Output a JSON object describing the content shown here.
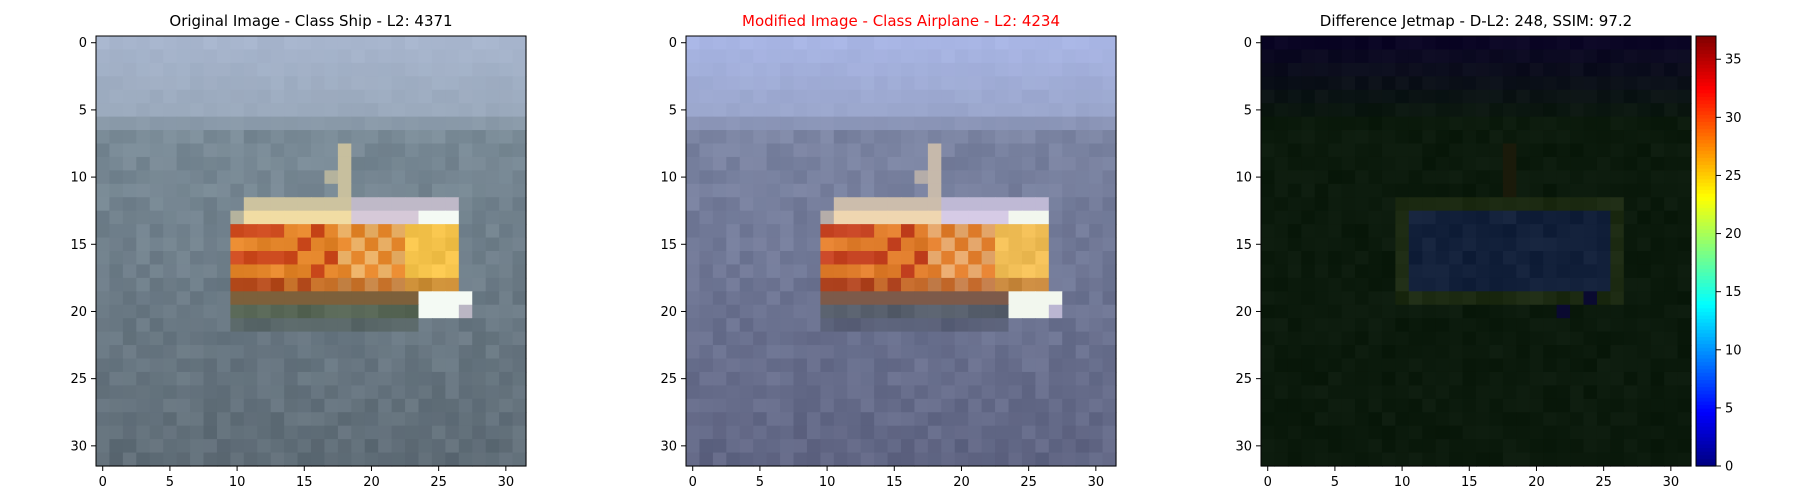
{
  "figure": {
    "colors": {
      "background": "#ffffff",
      "axis": "#000000",
      "title_default": "#000000",
      "title_modified": "#ff0000"
    }
  },
  "chart_data": [
    {
      "type": "heatmap",
      "title": "Original Image - Class Ship - L2: 4371",
      "title_color": "#000000",
      "image_shape": [
        32,
        32
      ],
      "xlim": [
        -0.5,
        31.5
      ],
      "ylim": [
        31.5,
        -0.5
      ],
      "xticks": [
        0,
        5,
        10,
        15,
        20,
        25,
        30
      ],
      "yticks": [
        0,
        5,
        10,
        15,
        20,
        25,
        30
      ],
      "palette": {
        "sky_top": "#a7b5cd",
        "sky_bottom": "#9aa9bc",
        "sea": "#798a96",
        "sea_dark": "#5c6973",
        "hull_cream": "#f1dca3",
        "hull_orange": "#e3852a",
        "hull_red": "#cc4a1e",
        "hull_yellow": "#f4c24a",
        "cabin_lavender": "#d6c9d8",
        "white": "#f4faf4",
        "hull_dark": "#9a4f1e",
        "shadow": "#46524c",
        "green_tint": "#5f7058"
      }
    },
    {
      "type": "heatmap",
      "title": "Modified Image - Class Airplane - L2: 4234",
      "title_color": "#ff0000",
      "image_shape": [
        32,
        32
      ],
      "xlim": [
        -0.5,
        31.5
      ],
      "ylim": [
        31.5,
        -0.5
      ],
      "xticks": [
        0,
        5,
        10,
        15,
        20,
        25,
        30
      ],
      "yticks": [
        0,
        5,
        10,
        15,
        20,
        25,
        30
      ],
      "palette": {
        "sky_top": "#a8b5e4",
        "sky_bottom": "#9aa6cc",
        "sea": "#7b84a2",
        "sea_dark": "#5d6280",
        "hull_cream": "#efd6b0",
        "hull_orange": "#e07d2c",
        "hull_red": "#c54322",
        "hull_yellow": "#f0bd55",
        "cabin_lavender": "#d6cbe6",
        "white": "#f2f7ee",
        "hull_dark": "#9a4a22",
        "shadow": "#454a5e",
        "green_tint": "#606a72"
      }
    },
    {
      "type": "heatmap",
      "title": "Difference Jetmap - D-L2: 248, SSIM: 97.2",
      "title_color": "#000000",
      "image_shape": [
        32,
        32
      ],
      "xlim": [
        -0.5,
        31.5
      ],
      "ylim": [
        31.5,
        -0.5
      ],
      "xticks": [
        0,
        5,
        10,
        15,
        20,
        25,
        30
      ],
      "yticks": [
        0,
        5,
        10,
        15,
        20,
        25,
        30
      ],
      "colormap": "jet",
      "colorbar": {
        "range": [
          0,
          37
        ],
        "ticks": [
          0,
          5,
          10,
          15,
          20,
          25,
          30,
          35
        ]
      },
      "palette": {
        "top": "#0b0625",
        "background": "#0b1a0c",
        "ship_outline": "#1c2a12",
        "ship_body": "#12203a",
        "ship_shadow": "#1a1a0a",
        "dark_spot": "#0a0a30"
      }
    }
  ]
}
